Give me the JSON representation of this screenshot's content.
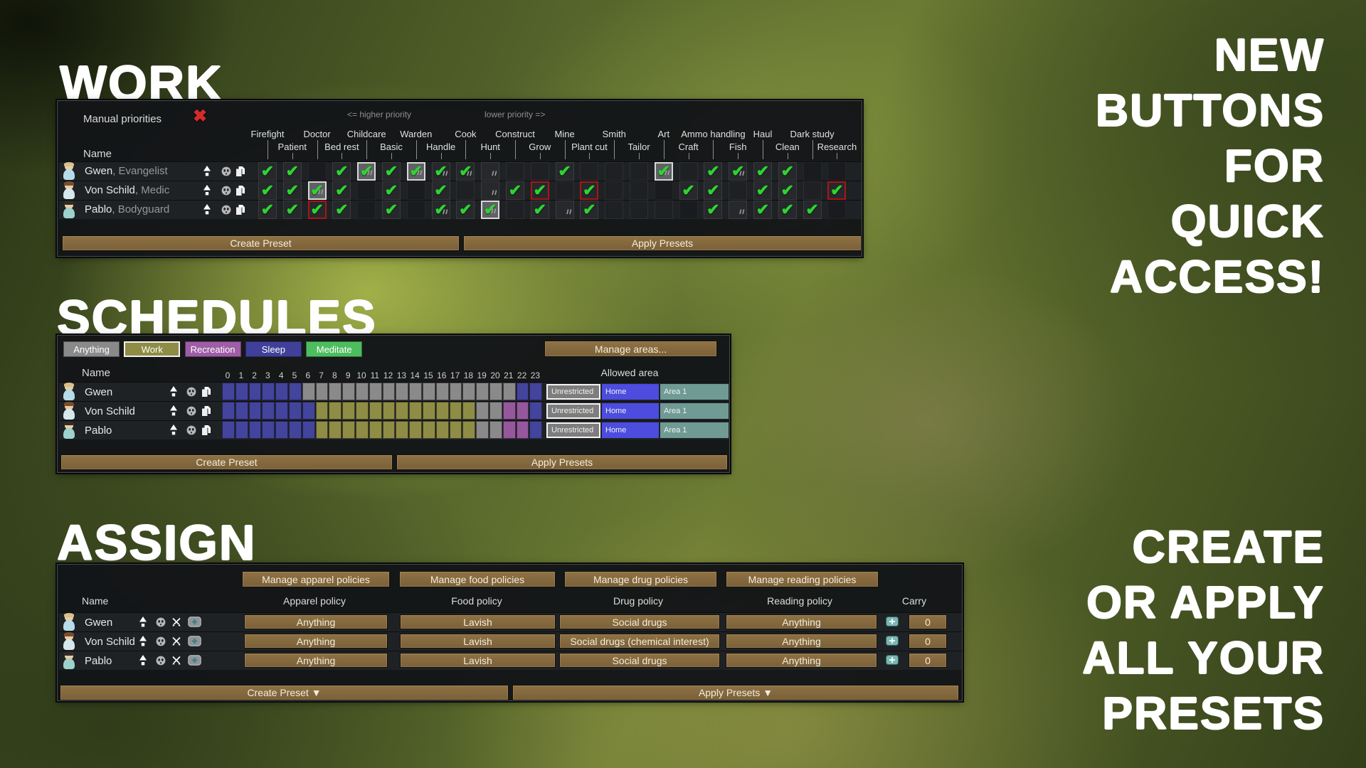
{
  "titles": {
    "work": "WORK",
    "schedules": "SCHEDULES",
    "assign": "ASSIGN"
  },
  "right_text": {
    "top_lines": [
      "NEW",
      "BUTTONS",
      "FOR",
      "QUICK",
      "ACCESS!"
    ],
    "bottom_lines": [
      "CREATE",
      "OR APPLY",
      "ALL YOUR",
      "PRESETS"
    ]
  },
  "work": {
    "manual_priorities_label": "Manual priorities",
    "higher_priority_label": "<= higher priority",
    "lower_priority_label": "lower priority =>",
    "name_header": "Name",
    "create_preset": "Create Preset",
    "apply_presets": "Apply Presets",
    "columns": [
      {
        "label": "Firefight",
        "row": "top"
      },
      {
        "label": "Patient",
        "row": "bottom"
      },
      {
        "label": "Doctor",
        "row": "top"
      },
      {
        "label": "Bed rest",
        "row": "bottom"
      },
      {
        "label": "Childcare",
        "row": "top"
      },
      {
        "label": "Basic",
        "row": "bottom"
      },
      {
        "label": "Warden",
        "row": "top"
      },
      {
        "label": "Handle",
        "row": "bottom"
      },
      {
        "label": "Cook",
        "row": "top"
      },
      {
        "label": "Hunt",
        "row": "bottom"
      },
      {
        "label": "Construct",
        "row": "top"
      },
      {
        "label": "Grow",
        "row": "bottom"
      },
      {
        "label": "Mine",
        "row": "top"
      },
      {
        "label": "Plant cut",
        "row": "bottom"
      },
      {
        "label": "Smith",
        "row": "top"
      },
      {
        "label": "Tailor",
        "row": "bottom"
      },
      {
        "label": "Art",
        "row": "top"
      },
      {
        "label": "Craft",
        "row": "bottom"
      },
      {
        "label": "Ammo handling",
        "row": "top"
      },
      {
        "label": "Fish",
        "row": "bottom"
      },
      {
        "label": "Haul",
        "row": "top"
      },
      {
        "label": "Clean",
        "row": "bottom"
      },
      {
        "label": "Dark study",
        "row": "top"
      },
      {
        "label": "Research",
        "row": "bottom"
      }
    ],
    "cell_legend": {
      "c": "checked",
      "f": "checked-with-passion",
      "h": "checked-highlighted",
      "r": "checked-red-border",
      "s": "passion-only",
      "e": "empty",
      "d": "empty-faint"
    },
    "pawns": [
      {
        "name": "Gwen",
        "role": "Evangelist",
        "cells": [
          "c",
          "c",
          "d",
          "c",
          "h",
          "c",
          "h",
          "f",
          "f",
          "s",
          "e",
          "e",
          "c",
          "e",
          "e",
          "e",
          "h",
          "e",
          "c",
          "f",
          "c",
          "c",
          "d",
          "d"
        ]
      },
      {
        "name": "Von Schild",
        "role": "Medic",
        "cells": [
          "c",
          "c",
          "h",
          "c",
          "d",
          "c",
          "d",
          "c",
          "e",
          "s",
          "c",
          "r",
          "e",
          "r",
          "e",
          "e",
          "d",
          "c",
          "c",
          "e",
          "c",
          "c",
          "e",
          "r"
        ]
      },
      {
        "name": "Pablo",
        "role": "Bodyguard",
        "cells": [
          "c",
          "c",
          "r",
          "c",
          "d",
          "c",
          "d",
          "f",
          "c",
          "h",
          "e",
          "c",
          "s",
          "c",
          "e",
          "e",
          "e",
          "d",
          "c",
          "s",
          "c",
          "c",
          "c",
          "d"
        ]
      }
    ]
  },
  "schedules": {
    "assignment_buttons": [
      {
        "label": "Anything",
        "color": "#8a8a8a",
        "selected": false
      },
      {
        "label": "Work",
        "color": "#8f8c45",
        "selected": true
      },
      {
        "label": "Recreation",
        "color": "#9e5da6",
        "selected": false
      },
      {
        "label": "Sleep",
        "color": "#40409a",
        "selected": false
      },
      {
        "label": "Meditate",
        "color": "#4dbd5e",
        "selected": false
      }
    ],
    "manage_areas": "Manage areas...",
    "name_header": "Name",
    "allowed_area_header": "Allowed area",
    "create_preset": "Create Preset",
    "apply_presets": "Apply Presets",
    "hours": [
      "0",
      "1",
      "2",
      "3",
      "4",
      "5",
      "6",
      "7",
      "8",
      "9",
      "10",
      "11",
      "12",
      "13",
      "14",
      "15",
      "16",
      "17",
      "18",
      "19",
      "20",
      "21",
      "22",
      "23"
    ],
    "hour_legend": {
      "A": "Anything",
      "W": "Work",
      "R": "Recreation",
      "S": "Sleep"
    },
    "hour_colors": {
      "A": "#8a8a8a",
      "W": "#8f8c45",
      "R": "#96589d",
      "S": "#43449c"
    },
    "area_options": [
      "Unrestricted",
      "Home",
      "Area 1"
    ],
    "area_colors": {
      "Unrestricted": "#7d7d7d",
      "Home": "#4c4cdf",
      "Area 1": "#6f9b94"
    },
    "rows": [
      {
        "name": "Gwen",
        "selected_area": "Unrestricted",
        "hours": [
          "S",
          "S",
          "S",
          "S",
          "S",
          "S",
          "A",
          "A",
          "A",
          "A",
          "A",
          "A",
          "A",
          "A",
          "A",
          "A",
          "A",
          "A",
          "A",
          "A",
          "A",
          "A",
          "S",
          "S"
        ]
      },
      {
        "name": "Von Schild",
        "selected_area": "Unrestricted",
        "hours": [
          "S",
          "S",
          "S",
          "S",
          "S",
          "S",
          "S",
          "W",
          "W",
          "W",
          "W",
          "W",
          "W",
          "W",
          "W",
          "W",
          "W",
          "W",
          "W",
          "A",
          "A",
          "R",
          "R",
          "S"
        ]
      },
      {
        "name": "Pablo",
        "selected_area": "Unrestricted",
        "hours": [
          "S",
          "S",
          "S",
          "S",
          "S",
          "S",
          "S",
          "W",
          "W",
          "W",
          "W",
          "W",
          "W",
          "W",
          "W",
          "W",
          "W",
          "W",
          "W",
          "A",
          "A",
          "R",
          "R",
          "S"
        ]
      }
    ]
  },
  "assign": {
    "manage_buttons": [
      "Manage apparel policies",
      "Manage food policies",
      "Manage drug policies",
      "Manage reading policies"
    ],
    "headers": {
      "name": "Name",
      "apparel": "Apparel policy",
      "food": "Food policy",
      "drug": "Drug policy",
      "reading": "Reading policy",
      "carry": "Carry"
    },
    "rows": [
      {
        "name": "Gwen",
        "apparel": "Anything",
        "food": "Lavish",
        "drug": "Social drugs",
        "reading": "Anything",
        "carry": "0"
      },
      {
        "name": "Von Schild",
        "apparel": "Anything",
        "food": "Lavish",
        "drug": "Social drugs (chemical interest)",
        "reading": "Anything",
        "carry": "0"
      },
      {
        "name": "Pablo",
        "apparel": "Anything",
        "food": "Lavish",
        "drug": "Social drugs",
        "reading": "Anything",
        "carry": "0"
      }
    ],
    "create_preset": "Create Preset ▼",
    "apply_presets": "Apply Presets ▼"
  },
  "icons": {
    "close": "✖ red cross",
    "rest": "crescent-moon",
    "time": "hourglass",
    "sort-arrow": "up-arrow",
    "mask": "grey face mask",
    "copy": "copy pages",
    "weapons": "crossed swords",
    "medical-kit": "grey box with teal cross",
    "medicine-plus": "teal box with plus",
    "dropdown": "▼"
  }
}
